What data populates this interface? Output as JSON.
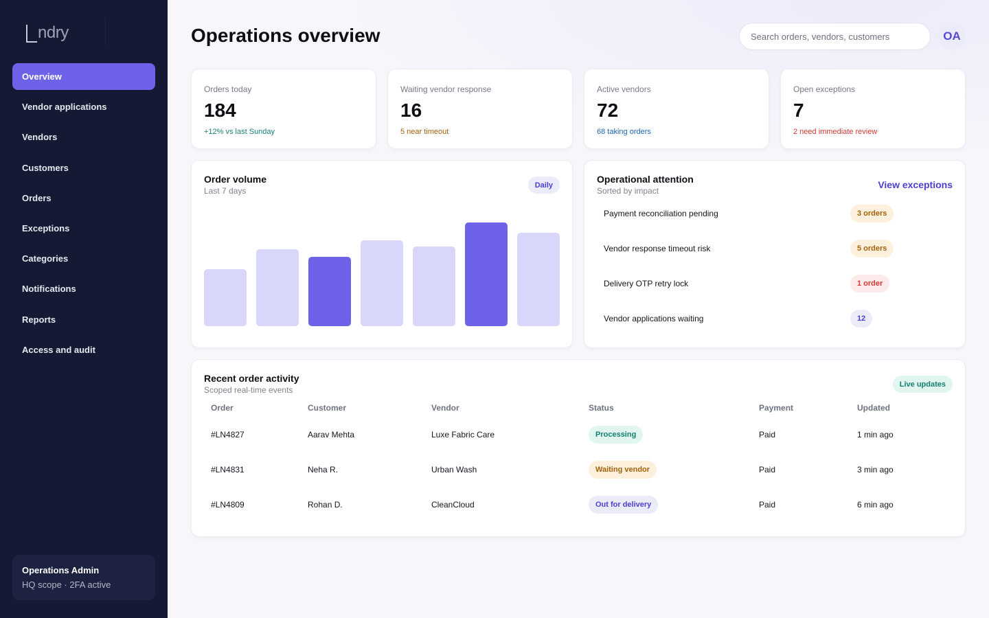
{
  "brand": {
    "logo_text": "ndry"
  },
  "sidebar": {
    "items": [
      {
        "label": "Overview",
        "active": true
      },
      {
        "label": "Vendor applications"
      },
      {
        "label": "Vendors"
      },
      {
        "label": "Customers"
      },
      {
        "label": "Orders"
      },
      {
        "label": "Exceptions"
      },
      {
        "label": "Categories"
      },
      {
        "label": "Notifications"
      },
      {
        "label": "Reports"
      },
      {
        "label": "Access and audit"
      }
    ],
    "user": {
      "name": "Operations Admin",
      "sub": "HQ scope · 2FA active"
    }
  },
  "header": {
    "title": "Operations overview",
    "search_placeholder": "Search orders, vendors, customers",
    "avatar_initials": "OA"
  },
  "stats": [
    {
      "label": "Orders today",
      "value": "184",
      "note": "+12% vs last Sunday",
      "note_color": "#18806f"
    },
    {
      "label": "Waiting vendor response",
      "value": "16",
      "note": "5 near timeout",
      "note_color": "#a3610a"
    },
    {
      "label": "Active vendors",
      "value": "72",
      "note": "68 taking orders",
      "note_color": "#1d63b5"
    },
    {
      "label": "Open exceptions",
      "value": "7",
      "note": "2 need immediate review",
      "note_color": "#cf3a32"
    }
  ],
  "order_volume": {
    "title": "Order volume",
    "subtitle": "Last 7 days",
    "badge": "Daily"
  },
  "chart_data": {
    "type": "bar",
    "values": [
      55,
      74,
      67,
      83,
      77,
      100,
      90
    ],
    "highlight": [
      false,
      false,
      true,
      false,
      false,
      true,
      false
    ],
    "ylim": [
      0,
      100
    ],
    "grid": false,
    "colors": {
      "normal": "#d9d6fb",
      "highlight": "#6e62e8"
    }
  },
  "attention": {
    "title": "Operational attention",
    "subtitle": "Sorted by impact",
    "link": "View exceptions",
    "items": [
      {
        "label": "Payment reconciliation pending",
        "badge": "3 orders",
        "tone": "orange"
      },
      {
        "label": "Vendor response timeout risk",
        "badge": "5 orders",
        "tone": "orange"
      },
      {
        "label": "Delivery OTP retry lock",
        "badge": "1 order",
        "tone": "red"
      },
      {
        "label": "Vendor applications waiting",
        "badge": "12",
        "tone": "purple"
      }
    ]
  },
  "activity": {
    "title": "Recent order activity",
    "subtitle": "Scoped real-time events",
    "badge": "Live updates",
    "columns": [
      "Order",
      "Customer",
      "Vendor",
      "Status",
      "Payment",
      "Updated"
    ],
    "rows": [
      {
        "order": "#LN4827",
        "customer": "Aarav Mehta",
        "vendor": "Luxe Fabric Care",
        "status": "Processing",
        "status_tone": "green",
        "payment": "Paid",
        "updated": "1 min ago"
      },
      {
        "order": "#LN4831",
        "customer": "Neha R.",
        "vendor": "Urban Wash",
        "status": "Waiting vendor",
        "status_tone": "orange",
        "payment": "Paid",
        "updated": "3 min ago"
      },
      {
        "order": "#LN4809",
        "customer": "Rohan D.",
        "vendor": "CleanCloud",
        "status": "Out for delivery",
        "status_tone": "purple",
        "payment": "Paid",
        "updated": "6 min ago"
      }
    ]
  }
}
